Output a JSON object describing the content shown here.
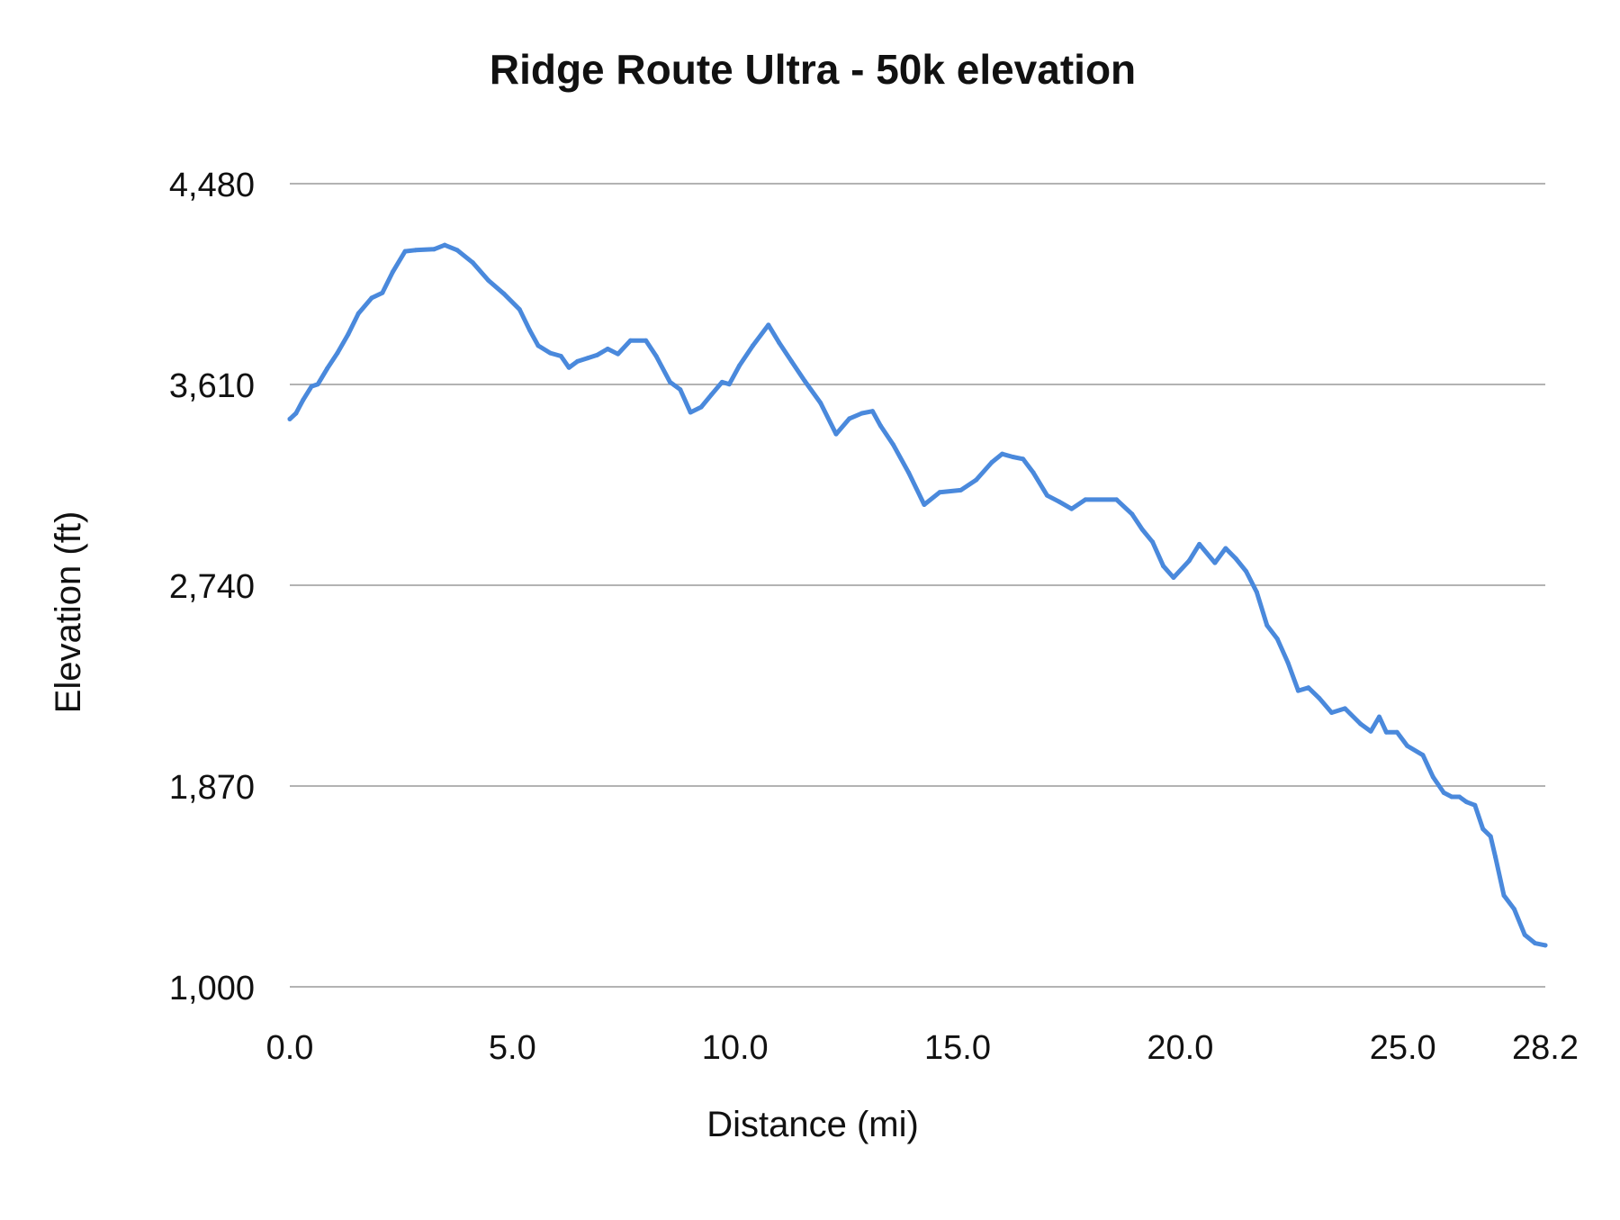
{
  "chart_data": {
    "type": "line",
    "title": "Ridge Route Ultra - 50k elevation",
    "xlabel": "Distance (mi)",
    "ylabel": "Elevation (ft)",
    "xlim": [
      0,
      28.2
    ],
    "ylim": [
      1000,
      4480
    ],
    "x_ticks": [
      "0.0",
      "5.0",
      "10.0",
      "15.0",
      "20.0",
      "25.0",
      "28.2"
    ],
    "x_tick_values": [
      0,
      5,
      10,
      15,
      20,
      25,
      28.2
    ],
    "y_ticks": [
      "4,480",
      "3,610",
      "2,740",
      "1,870",
      "1,000"
    ],
    "y_tick_values": [
      4480,
      3610,
      2740,
      1870,
      1000
    ],
    "grid": "horizontal",
    "line_color": "#4a89dc",
    "grid_color": "#b3b3b3",
    "series": [
      {
        "x": [
          0,
          0.14,
          0.3,
          0.49,
          0.63,
          0.84,
          1.07,
          1.31,
          1.54,
          1.84,
          2.08,
          2.31,
          2.59,
          2.82,
          3.24,
          3.48,
          3.76,
          4.11,
          4.46,
          4.81,
          5.16,
          5.39,
          5.58,
          5.85,
          6.09,
          6.27,
          6.46,
          6.69,
          6.9,
          7.14,
          7.37,
          7.65,
          8.0,
          8.23,
          8.54,
          8.77,
          9.0,
          9.24,
          9.47,
          9.71,
          9.87,
          10.1,
          10.4,
          10.75,
          10.99,
          11.27,
          11.57,
          11.92,
          12.27,
          12.57,
          12.85,
          13.09,
          13.27,
          13.55,
          13.9,
          14.25,
          14.6,
          15.07,
          15.42,
          15.77,
          16.0,
          16.24,
          16.47,
          16.7,
          17.01,
          17.28,
          17.56,
          17.87,
          18.57,
          18.92,
          19.15,
          19.38,
          19.62,
          19.85,
          20.2,
          20.43,
          20.78,
          21.02,
          21.25,
          21.48,
          21.72,
          21.95,
          22.18,
          22.42,
          22.65,
          22.88,
          23.12,
          23.4,
          23.7,
          24.05,
          24.28,
          24.47,
          24.63,
          24.87,
          25.1,
          25.45,
          25.68,
          25.92,
          26.1,
          26.27,
          26.43,
          26.62,
          26.8,
          26.97,
          27.08,
          27.27,
          27.5,
          27.74,
          27.97,
          28.2
        ],
        "y": [
          3460,
          3485,
          3543,
          3602,
          3611,
          3679,
          3746,
          3827,
          3917,
          3985,
          4007,
          4097,
          4187,
          4192,
          4196,
          4214,
          4192,
          4138,
          4061,
          4003,
          3935,
          3845,
          3778,
          3746,
          3733,
          3683,
          3710,
          3724,
          3737,
          3764,
          3742,
          3800,
          3800,
          3733,
          3620,
          3588,
          3489,
          3512,
          3566,
          3620,
          3611,
          3692,
          3778,
          3868,
          3791,
          3710,
          3624,
          3530,
          3395,
          3462,
          3485,
          3494,
          3431,
          3350,
          3228,
          3089,
          3143,
          3152,
          3197,
          3273,
          3309,
          3296,
          3287,
          3228,
          3129,
          3102,
          3071,
          3111,
          3111,
          3048,
          2981,
          2927,
          2823,
          2773,
          2846,
          2918,
          2837,
          2900,
          2855,
          2800,
          2710,
          2566,
          2508,
          2404,
          2283,
          2296,
          2251,
          2188,
          2206,
          2139,
          2107,
          2170,
          2103,
          2103,
          2044,
          2004,
          1909,
          1841,
          1823,
          1823,
          1801,
          1787,
          1684,
          1652,
          1562,
          1396,
          1337,
          1225,
          1189,
          1180
        ]
      }
    ]
  }
}
